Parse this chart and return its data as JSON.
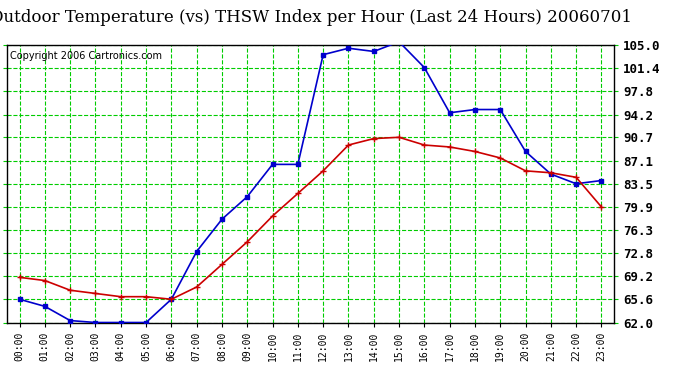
{
  "title": "Outdoor Temperature (vs) THSW Index per Hour (Last 24 Hours) 20060701",
  "copyright": "Copyright 2006 Cartronics.com",
  "hours": [
    "00:00",
    "01:00",
    "02:00",
    "03:00",
    "04:00",
    "05:00",
    "06:00",
    "07:00",
    "08:00",
    "09:00",
    "10:00",
    "11:00",
    "12:00",
    "13:00",
    "14:00",
    "15:00",
    "16:00",
    "17:00",
    "18:00",
    "19:00",
    "20:00",
    "21:00",
    "22:00",
    "23:00"
  ],
  "temp_red": [
    69.0,
    68.5,
    67.0,
    66.5,
    66.0,
    66.0,
    65.6,
    67.5,
    71.0,
    74.5,
    78.5,
    82.0,
    85.5,
    89.5,
    90.5,
    90.7,
    89.5,
    89.2,
    88.5,
    87.5,
    85.5,
    85.2,
    84.5,
    79.9
  ],
  "thsw_blue": [
    65.6,
    64.5,
    62.3,
    62.0,
    62.0,
    62.0,
    65.6,
    73.0,
    78.0,
    81.5,
    86.5,
    86.5,
    103.5,
    104.5,
    104.0,
    105.5,
    101.5,
    94.5,
    95.0,
    95.0,
    88.5,
    85.0,
    83.5,
    84.0
  ],
  "y_ticks": [
    62.0,
    65.6,
    69.2,
    72.8,
    76.3,
    79.9,
    83.5,
    87.1,
    90.7,
    94.2,
    97.8,
    101.4,
    105.0
  ],
  "ylim": [
    62.0,
    105.0
  ],
  "bg_color": "#ffffff",
  "plot_bg": "#ffffff",
  "red_color": "#cc0000",
  "blue_color": "#0000cc",
  "grid_color": "#00cc00",
  "title_fontsize": 12,
  "copyright_fontsize": 7,
  "ytick_fontsize": 9,
  "xtick_fontsize": 7
}
